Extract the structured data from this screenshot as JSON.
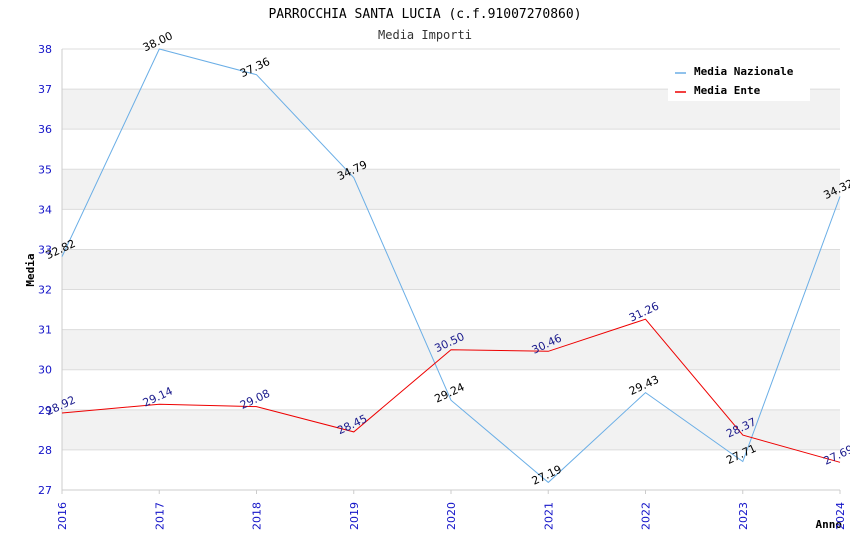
{
  "chart_data": {
    "type": "line",
    "title": "PARROCCHIA SANTA LUCIA (c.f.91007270860)",
    "subtitle": "Media Importi",
    "xlabel": "Anno",
    "ylabel": "Media",
    "categories": [
      "2016",
      "2017",
      "2018",
      "2019",
      "2020",
      "2021",
      "2022",
      "2023",
      "2024"
    ],
    "ylim": [
      27,
      38
    ],
    "yticks": [
      "27",
      "28",
      "29",
      "30",
      "31",
      "32",
      "33",
      "34",
      "35",
      "36",
      "37",
      "38"
    ],
    "grid": true,
    "legend_position": "top-right",
    "series": [
      {
        "name": "Media Nazionale",
        "color": "#6aaee6",
        "label_color": "#000000",
        "values": [
          32.82,
          38.0,
          37.36,
          34.79,
          29.24,
          27.19,
          29.43,
          27.71,
          34.32
        ],
        "labels": [
          "32.82",
          "38.00",
          "37.36",
          "34.79",
          "29.24",
          "27.19",
          "29.43",
          "27.71",
          "34.32"
        ]
      },
      {
        "name": "Media Ente",
        "color": "#ee0000",
        "label_color": "#1a1a8c",
        "values": [
          28.92,
          29.14,
          29.08,
          28.45,
          30.5,
          30.46,
          31.26,
          28.37,
          27.69
        ],
        "labels": [
          "28.92",
          "29.14",
          "29.08",
          "28.45",
          "30.50",
          "30.46",
          "31.26",
          "28.37",
          "27.69"
        ]
      }
    ],
    "colors": {
      "band": "#f2f2f2",
      "grid": "#dcdcdc",
      "axis_tick_text": "#1414c8",
      "title_text": "#000000",
      "subtitle_text": "#333333"
    }
  }
}
